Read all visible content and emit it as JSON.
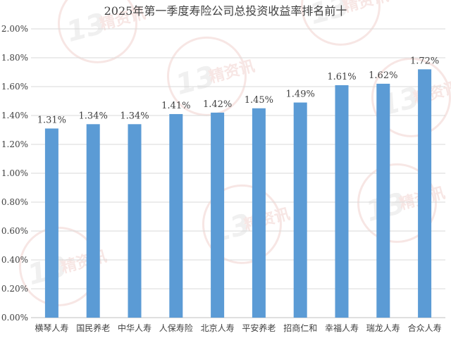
{
  "chart_data": {
    "type": "bar",
    "title": "2025年第一季度寿险公司总投资收益率排名前十",
    "categories": [
      "横琴人寿",
      "国民养老",
      "中华人寿",
      "人保寿险",
      "北京人寿",
      "平安养老",
      "招商仁和",
      "幸福人寿",
      "瑞龙人寿",
      "合众人寿"
    ],
    "values": [
      1.31,
      1.34,
      1.34,
      1.41,
      1.42,
      1.45,
      1.49,
      1.61,
      1.62,
      1.72
    ],
    "data_labels": [
      "1.31%",
      "1.34%",
      "1.34%",
      "1.41%",
      "1.42%",
      "1.45%",
      "1.49%",
      "1.61%",
      "1.62%",
      "1.72%"
    ],
    "y_ticks": [
      0.0,
      0.2,
      0.4,
      0.6,
      0.8,
      1.0,
      1.2,
      1.4,
      1.6,
      1.8,
      2.0
    ],
    "y_tick_labels": [
      "0.00%",
      "0.20%",
      "0.40%",
      "0.60%",
      "0.80%",
      "1.00%",
      "1.20%",
      "1.40%",
      "1.60%",
      "1.80%",
      "2.00%"
    ],
    "ylim": [
      0,
      2.0
    ],
    "xlabel": "",
    "ylabel": "",
    "grid": true,
    "legend": "none",
    "bar_color": "#5b9bd5"
  },
  "watermark": {
    "text_num": "13",
    "text_cn": "精资讯"
  }
}
